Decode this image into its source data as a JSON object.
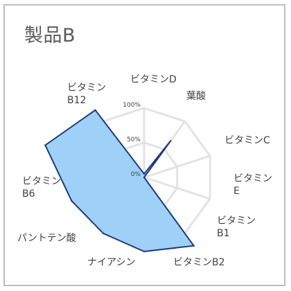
{
  "chart_data": {
    "type": "radar",
    "title": "製品B",
    "axes": [
      [
        "ビタミンD"
      ],
      [
        "葉酸"
      ],
      [
        "ビタミンC"
      ],
      [
        "ビタミン",
        "E"
      ],
      [
        "ビタミン",
        "B1"
      ],
      [
        "ビタミンB2"
      ],
      [
        "ナイアシン"
      ],
      [
        "パントテン酸"
      ],
      [
        "ビタミン",
        "B6"
      ],
      [
        "ビタミン",
        "B12"
      ]
    ],
    "categories": [
      "ビタミンD",
      "葉酸",
      "ビタミンC",
      "ビタミンE",
      "ビタミンB1",
      "ビタミンB2",
      "ナイアシン",
      "パントテン酸",
      "ビタミンB6",
      "ビタミンB12"
    ],
    "values": [
      5,
      65,
      0,
      0,
      122,
      107,
      100,
      110,
      150,
      120
    ],
    "rlim": [
      0,
      100
    ],
    "ticks": [
      "0%",
      "50%",
      "100%"
    ],
    "fill_color": "#9fd0f8",
    "line_color": "#1f3a7a",
    "grid_color": "#e3e3e3"
  }
}
